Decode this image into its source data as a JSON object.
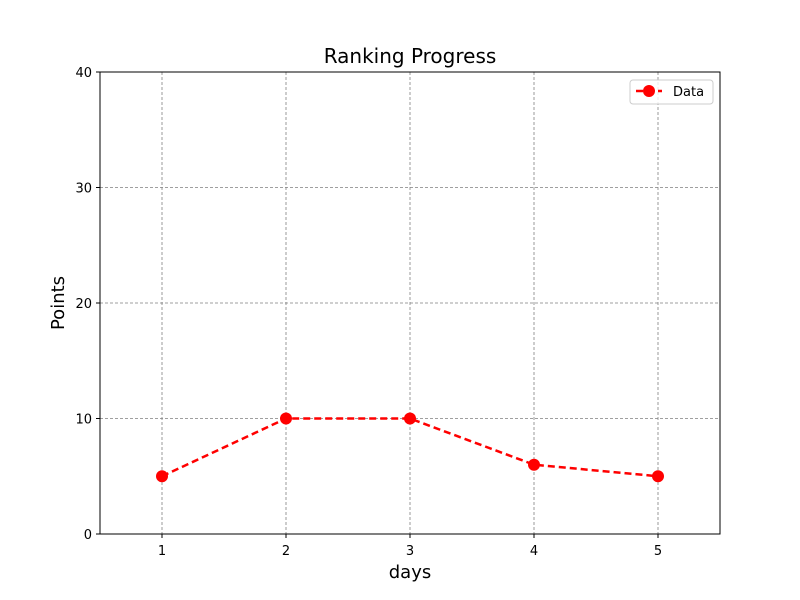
{
  "chart_data": {
    "type": "line",
    "title": "Ranking Progress",
    "xlabel": "days",
    "ylabel": "Points",
    "x": [
      1,
      2,
      3,
      4,
      5
    ],
    "series": [
      {
        "name": "Data",
        "values": [
          5,
          10,
          10,
          6,
          5
        ],
        "color": "#ff0000",
        "line_style": "dashed",
        "marker": "circle"
      }
    ],
    "xlim": [
      0.5,
      5.5
    ],
    "ylim": [
      0,
      40
    ],
    "xticks": [
      1,
      2,
      3,
      4,
      5
    ],
    "yticks": [
      0,
      10,
      20,
      30,
      40
    ],
    "grid": true,
    "legend_position": "top-right"
  }
}
